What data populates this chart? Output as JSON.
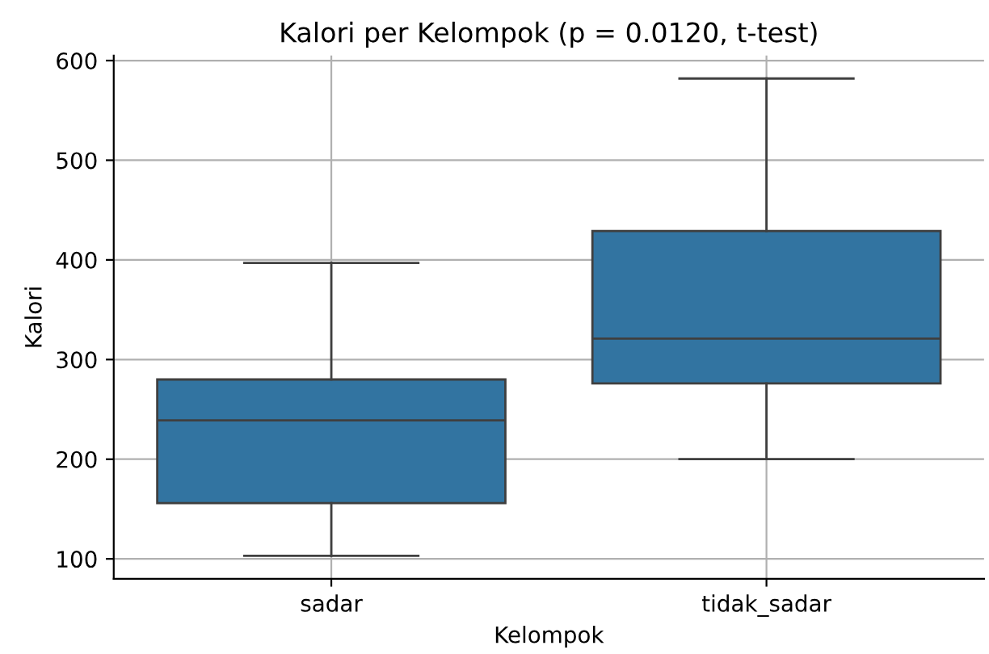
{
  "chart_data": {
    "type": "box",
    "title": "Kalori per Kelompok (p = 0.0120, t-test)",
    "xlabel": "Kelompok",
    "ylabel": "Kalori",
    "categories": [
      "sadar",
      "tidak_sadar"
    ],
    "boxes": [
      {
        "low": 103,
        "q1": 156,
        "median": 239,
        "q3": 280,
        "high": 397
      },
      {
        "low": 200,
        "q1": 276,
        "median": 321,
        "q3": 429,
        "high": 582
      }
    ],
    "color": "#3274a1",
    "ylim": [
      80,
      605
    ],
    "yticks": [
      100,
      200,
      300,
      400,
      500,
      600
    ],
    "grid": true
  }
}
